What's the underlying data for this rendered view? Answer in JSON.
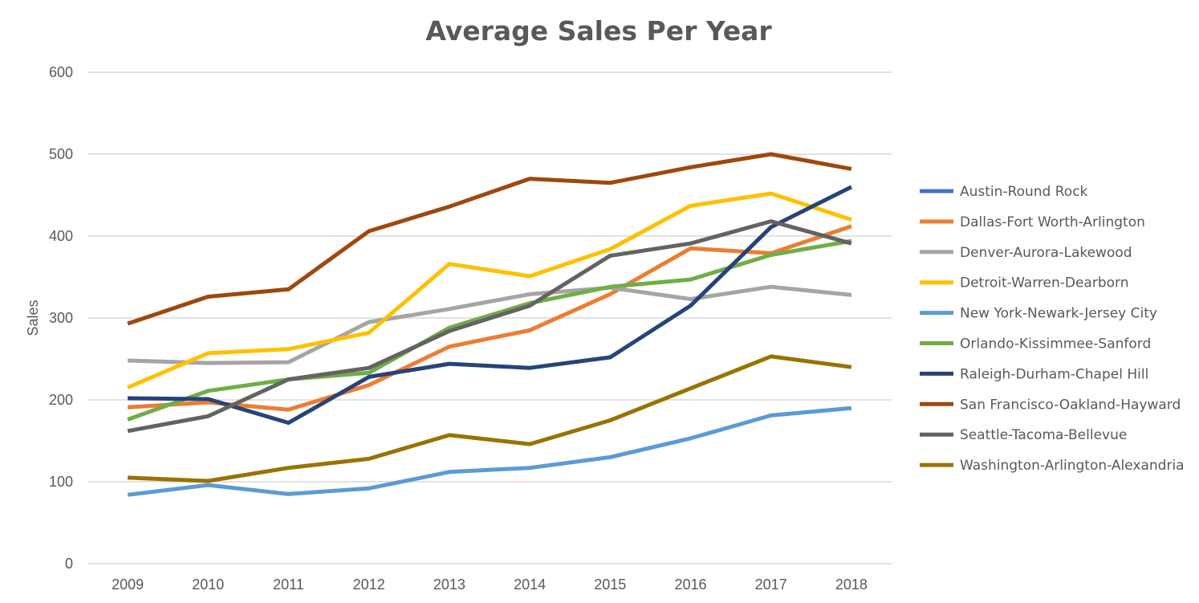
{
  "chart_data": {
    "type": "line",
    "title": "Average Sales Per Year",
    "xlabel": "",
    "ylabel": "Sales",
    "ylim": [
      0,
      600
    ],
    "yticks": [
      0,
      100,
      200,
      300,
      400,
      500,
      600
    ],
    "grid": true,
    "legend_position": "right",
    "x": [
      "2009",
      "2010",
      "2011",
      "2012",
      "2013",
      "2014",
      "2015",
      "2016",
      "2017",
      "2018"
    ],
    "series": [
      {
        "name": "Austin-Round Rock",
        "color": "#4472c4",
        "values": [
          null,
          null,
          null,
          null,
          null,
          null,
          null,
          null,
          null,
          null
        ]
      },
      {
        "name": "Dallas-Fort Worth-Arlington",
        "color": "#ed7d31",
        "values": [
          191,
          197,
          188,
          218,
          265,
          285,
          329,
          385,
          379,
          412
        ]
      },
      {
        "name": "Denver-Aurora-Lakewood",
        "color": "#a5a5a5",
        "values": [
          248,
          245,
          246,
          295,
          311,
          329,
          337,
          323,
          338,
          328
        ]
      },
      {
        "name": "Detroit-Warren-Dearborn",
        "color": "#ffc000",
        "values": [
          215,
          257,
          262,
          282,
          366,
          351,
          384,
          437,
          452,
          420
        ]
      },
      {
        "name": "New York-Newark-Jersey City",
        "color": "#5b9bd5",
        "values": [
          84,
          96,
          85,
          92,
          112,
          117,
          130,
          153,
          181,
          190
        ]
      },
      {
        "name": "Orlando-Kissimmee-Sanford",
        "color": "#70ad47",
        "values": [
          176,
          211,
          225,
          233,
          288,
          318,
          338,
          347,
          377,
          394
        ]
      },
      {
        "name": "Raleigh-Durham-Chapel Hill",
        "color": "#264478",
        "values": [
          202,
          201,
          172,
          228,
          244,
          239,
          252,
          315,
          411,
          460
        ]
      },
      {
        "name": "San Francisco-Oakland-Hayward",
        "color": "#9e480e",
        "values": [
          293,
          326,
          335,
          406,
          436,
          470,
          465,
          484,
          500,
          482
        ]
      },
      {
        "name": "Seattle-Tacoma-Bellevue",
        "color": "#636363",
        "values": [
          162,
          180,
          225,
          239,
          284,
          315,
          376,
          391,
          418,
          391
        ]
      },
      {
        "name": "Washington-Arlington-Alexandria",
        "color": "#997300",
        "values": [
          105,
          101,
          117,
          128,
          157,
          146,
          175,
          214,
          253,
          240
        ]
      }
    ]
  }
}
